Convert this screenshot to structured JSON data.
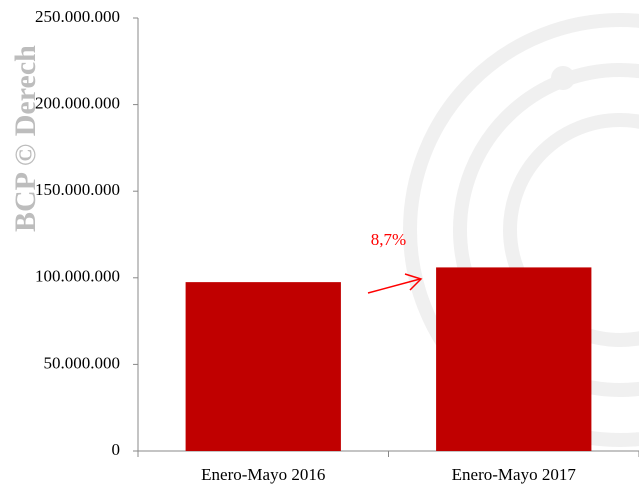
{
  "watermark": "BCP © Derech",
  "chart_data": {
    "type": "bar",
    "categories": [
      "Enero-Mayo 2016",
      "Enero-Mayo 2017"
    ],
    "values": [
      97500000,
      106000000
    ],
    "color": "#c00000",
    "ylim": [
      0,
      250000000
    ],
    "yticks": [
      0,
      {
        "value": 50000000,
        "label": "50.000.000"
      },
      {
        "value": 100000000,
        "label": "100.000.000"
      },
      {
        "value": 150000000,
        "label": "150.000.000"
      },
      {
        "value": 200000000,
        "label": "200.000.000"
      },
      {
        "value": 250000000,
        "label": "250.000.000"
      }
    ],
    "annotation": "8,7%",
    "annotation_color": "#ff0000"
  }
}
